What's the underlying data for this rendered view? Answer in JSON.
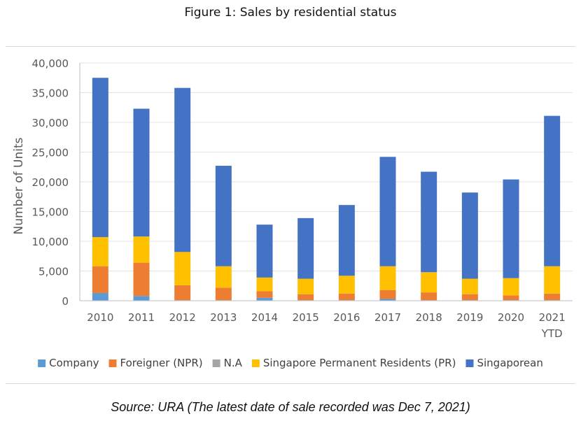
{
  "figure_title": "Figure 1: Sales by residential status",
  "source": "Source: URA (The latest date of sale recorded was Dec 7, 2021)",
  "chart_data": {
    "type": "bar",
    "stacked": true,
    "title": "",
    "xlabel": "",
    "ylabel": "Number of Units",
    "ylim": [
      0,
      40000
    ],
    "yticks": [
      "0",
      "5,000",
      "10,000",
      "15,000",
      "20,000",
      "25,000",
      "30,000",
      "35,000",
      "40,000"
    ],
    "grid": true,
    "legend_position": "bottom",
    "categories": [
      "2010",
      "2011",
      "2012",
      "2013",
      "2014",
      "2015",
      "2016",
      "2017",
      "2018",
      "2019",
      "2020",
      "2021 YTD"
    ],
    "series": [
      {
        "name": "Company",
        "color": "#5B9BD5",
        "values": [
          1300,
          800,
          100,
          100,
          500,
          100,
          100,
          300,
          100,
          100,
          100,
          100
        ]
      },
      {
        "name": "Foreigner (NPR)",
        "color": "#ED7D31",
        "values": [
          4500,
          5600,
          2500,
          2100,
          1100,
          1000,
          1100,
          1500,
          1300,
          1000,
          800,
          1100
        ]
      },
      {
        "name": "N.A",
        "color": "#A5A5A5",
        "values": [
          0,
          0,
          0,
          0,
          0,
          0,
          0,
          0,
          0,
          0,
          0,
          0
        ]
      },
      {
        "name": "Singapore Permanent Residents (PR)",
        "color": "#FFC000",
        "values": [
          4900,
          4400,
          5600,
          3600,
          2300,
          2600,
          3000,
          4000,
          3400,
          2600,
          2900,
          4600
        ]
      },
      {
        "name": "Singaporean",
        "color": "#4472C4",
        "values": [
          26800,
          21500,
          27600,
          16900,
          8900,
          10200,
          11900,
          18400,
          16900,
          14500,
          16600,
          25300
        ]
      }
    ]
  }
}
